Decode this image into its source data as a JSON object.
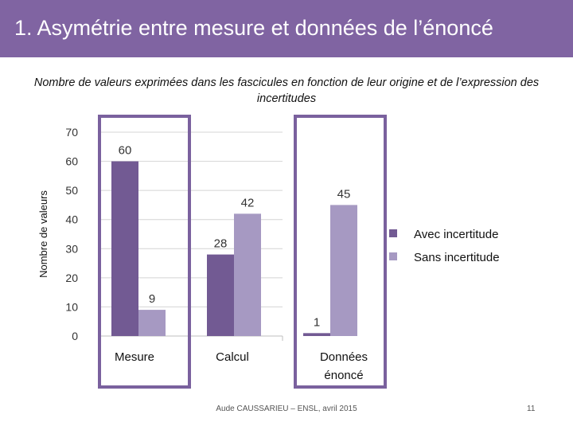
{
  "slide": {
    "title": "1. Asymétrie entre mesure et données de l’énoncé",
    "footer": "Aude CAUSSARIEU – ENSL, avril 2015",
    "page_number": "11",
    "header_color": "#8064a2",
    "highlight_color": "#7a619e"
  },
  "chart_data": {
    "type": "bar",
    "title": "Nombre de valeurs exprimées dans les fascicules en fonction de leur origine et de l’expression des incertitudes",
    "ylabel": "Nombre de valeurs",
    "xlabel": "",
    "categories": [
      "Mesure",
      "Calcul",
      "Données énoncé"
    ],
    "series": [
      {
        "name": "Avec incertitude",
        "values": [
          60,
          28,
          1
        ],
        "color": "#725a93"
      },
      {
        "name": "Sans incertitude",
        "values": [
          9,
          42,
          45
        ],
        "color": "#a699c2"
      }
    ],
    "ylim": [
      0,
      70
    ],
    "yticks": [
      0,
      10,
      20,
      30,
      40,
      50,
      60,
      70
    ],
    "grid": true,
    "legend": "right",
    "highlighted_categories": [
      "Mesure",
      "Données énoncé"
    ]
  }
}
